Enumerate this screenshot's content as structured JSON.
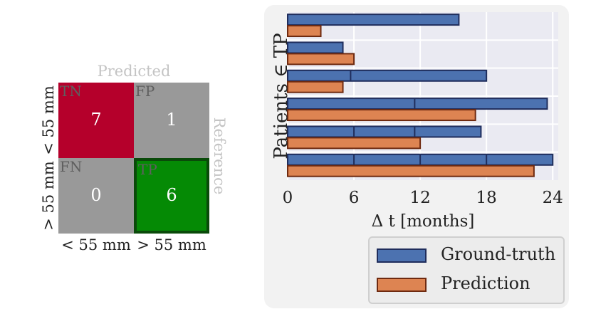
{
  "confusion_matrix": {
    "header_label": "Predicted",
    "side_label": "Reference",
    "row_labels": [
      "< 55 mm",
      "> 55 mm"
    ],
    "col_labels": [
      "< 55 mm",
      "> 55 mm"
    ],
    "cells": [
      {
        "tag": "TN",
        "value": "7",
        "color": "#b5002b"
      },
      {
        "tag": "FP",
        "value": "1",
        "color": "#999999"
      },
      {
        "tag": "FN",
        "value": "0",
        "color": "#999999"
      },
      {
        "tag": "TP",
        "value": "6",
        "color": "#058a05",
        "highlight": "#0a4a0a"
      }
    ]
  },
  "chart_data": {
    "type": "bar",
    "orientation": "horizontal",
    "ylabel": "Patients ∈ TP",
    "xlabel": "Δ t [months]",
    "xlim": [
      0,
      24.5
    ],
    "xticks": [
      "0",
      "6",
      "12",
      "18",
      "24"
    ],
    "grid": true,
    "legend_position": "bottom-right",
    "series": [
      {
        "name": "Ground-truth",
        "color": "#4c72b0",
        "edge": "#1f2d5c",
        "values": [
          15.5,
          5,
          18,
          23.5,
          17.5,
          24
        ],
        "segment_boundaries": [
          [],
          [],
          [
            5.7
          ],
          [
            11.5
          ],
          [
            6,
            11.5
          ],
          [
            6,
            12,
            18
          ]
        ]
      },
      {
        "name": "Prediction",
        "color": "#dd8452",
        "edge": "#6e2a10",
        "values": [
          3,
          6,
          5,
          17,
          12,
          22.3
        ]
      }
    ]
  }
}
